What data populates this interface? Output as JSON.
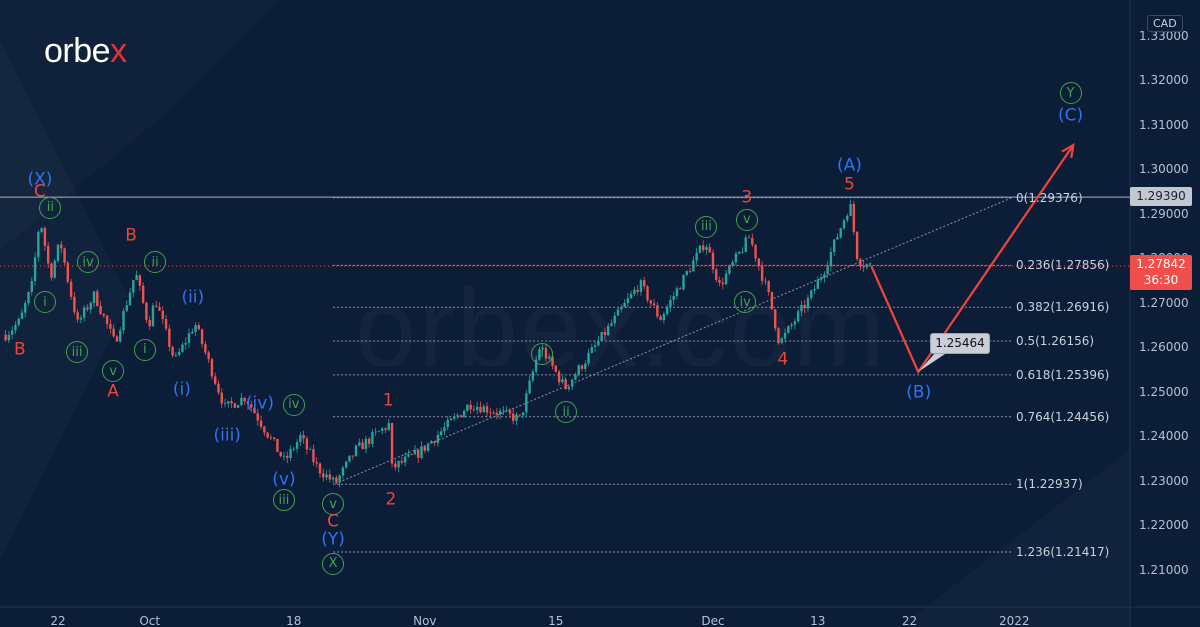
{
  "logo": {
    "text_main": "orbe",
    "text_accent": "x"
  },
  "watermark": "orbex.com",
  "currency": "CAD",
  "colors": {
    "background": "#0c1d38",
    "up": "#26a69a",
    "down": "#ef5350",
    "wave_red": "#f0443a",
    "wave_blue": "#2f73f0",
    "wave_green": "#3fa34d",
    "projection": "#f0443a"
  },
  "chart_data": {
    "type": "candlestick",
    "symbol_quote": "CAD",
    "ylim": [
      1.205,
      1.335
    ],
    "y_ticks": [
      "1.21000",
      "1.22000",
      "1.23000",
      "1.24000",
      "1.25000",
      "1.26000",
      "1.27000",
      "1.28000",
      "1.29000",
      "1.30000",
      "1.31000",
      "1.32000",
      "1.33000"
    ],
    "x_ticks": [
      {
        "date": "2021-09-22T00:00",
        "label": "22"
      },
      {
        "date": "2021-10-01T00:00",
        "label": "Oct"
      },
      {
        "date": "2021-10-18T00:00",
        "label": "18"
      },
      {
        "date": "2021-11-01T00:00",
        "label": "Nov"
      },
      {
        "date": "2021-11-15T00:00",
        "label": "15"
      },
      {
        "date": "2021-12-01T00:00",
        "label": "Dec"
      },
      {
        "date": "2021-12-13T00:00",
        "label": "13"
      },
      {
        "date": "2021-12-22T00:00",
        "label": "22"
      },
      {
        "date": "2022-01-03T00:00",
        "label": "2022"
      }
    ],
    "price_path": [
      [
        "2021-09-16T00:00",
        1.263
      ],
      [
        "2021-09-17T02:00",
        1.266
      ],
      [
        "2021-09-20T00:00",
        1.274
      ],
      [
        "2021-09-20T15:00",
        1.2895
      ],
      [
        "2021-09-21T10:00",
        1.276
      ],
      [
        "2021-09-22T04:00",
        1.284
      ],
      [
        "2021-09-22T22:00",
        1.273
      ],
      [
        "2021-09-23T12:00",
        1.2655
      ],
      [
        "2021-09-24T19:00",
        1.272
      ],
      [
        "2021-09-28T08:00",
        1.261
      ],
      [
        "2021-09-29T22:00",
        1.277
      ],
      [
        "2021-09-30T22:00",
        1.265
      ],
      [
        "2021-10-01T10:00",
        1.271
      ],
      [
        "2021-10-04T22:00",
        1.257
      ],
      [
        "2021-10-06T11:00",
        1.2655
      ],
      [
        "2021-10-08T18:00",
        1.2465
      ],
      [
        "2021-10-12T07:00",
        1.249
      ],
      [
        "2021-10-15T07:00",
        1.2345
      ],
      [
        "2021-10-18T12:00",
        1.24
      ],
      [
        "2021-10-19T20:00",
        1.233
      ],
      [
        "2021-10-21T04:00",
        1.2295
      ],
      [
        "2021-10-22T17:00",
        1.237
      ],
      [
        "2021-10-27T08:00",
        1.243
      ],
      [
        "2021-10-27T12:00",
        1.233
      ],
      [
        "2021-10-29T14:00",
        1.2365
      ],
      [
        "2021-11-04T11:00",
        1.2475
      ],
      [
        "2021-11-10T07:00",
        1.244
      ],
      [
        "2021-11-11T19:00",
        1.2605
      ],
      [
        "2021-11-15T17:00",
        1.251
      ],
      [
        "2021-11-18T10:00",
        1.262
      ],
      [
        "2021-11-23T10:00",
        1.2745
      ],
      [
        "2021-11-24T23:00",
        1.2665
      ],
      [
        "2021-11-30T10:00",
        1.284
      ],
      [
        "2021-12-01T12:00",
        1.274
      ],
      [
        "2021-12-03T19:00",
        1.285
      ],
      [
        "2021-12-07T08:00",
        1.271
      ],
      [
        "2021-12-08T02:00",
        1.261
      ],
      [
        "2021-12-10T10:00",
        1.2715
      ],
      [
        "2021-12-13T13:00",
        1.278
      ],
      [
        "2021-12-15T11:00",
        1.2925
      ],
      [
        "2021-12-16T01:00",
        1.28
      ],
      [
        "2021-12-16T10:00",
        1.279
      ],
      [
        "2021-12-17T02:00",
        1.2784
      ]
    ],
    "horizontal_line": {
      "price": 1.2939,
      "label": "1.29390"
    },
    "last_price": {
      "value": "1.27842",
      "countdown": "36:30"
    },
    "fib_levels": [
      {
        "price": 1.29376,
        "label": "0(1.29376)"
      },
      {
        "price": 1.27856,
        "label": "0.236(1.27856)"
      },
      {
        "price": 1.26916,
        "label": "0.382(1.26916)"
      },
      {
        "price": 1.26156,
        "label": "0.5(1.26156)"
      },
      {
        "price": 1.25396,
        "label": "0.618(1.25396)"
      },
      {
        "price": 1.24456,
        "label": "0.764(1.24456)"
      },
      {
        "price": 1.22937,
        "label": "1(1.22937)"
      },
      {
        "price": 1.21417,
        "label": "1.236(1.21417)"
      }
    ],
    "fib_start": "2021-10-21T00:00",
    "trendline": [
      [
        "2021-10-21T04:00",
        1.2295
      ],
      [
        "2022-01-03T00:00",
        1.294
      ]
    ],
    "projection": [
      [
        "2021-12-17T02:00",
        1.2784
      ],
      [
        "2021-12-22T16:00",
        1.25464
      ],
      [
        "2022-01-07T12:00",
        1.3056
      ]
    ],
    "projection_label": "1.25464",
    "wave_labels": [
      {
        "date": "2021-09-20T15:00",
        "price": 1.2978,
        "text": "(X)",
        "color": "blue"
      },
      {
        "date": "2021-09-20T15:00",
        "price": 1.2951,
        "text": "C",
        "color": "red"
      },
      {
        "date": "2021-09-21T10:00",
        "price": 1.2915,
        "text": "ii",
        "color": "green"
      },
      {
        "date": "2021-09-21T00:00",
        "price": 1.2703,
        "text": "i",
        "color": "green"
      },
      {
        "date": "2021-09-24T07:00",
        "price": 1.2793,
        "text": "iv",
        "color": "green"
      },
      {
        "date": "2021-09-23T11:00",
        "price": 1.2591,
        "text": "iii",
        "color": "green"
      },
      {
        "date": "2021-09-17T02:00",
        "price": 1.2596,
        "text": "B",
        "color": "red"
      },
      {
        "date": "2021-09-28T05:00",
        "price": 1.2548,
        "text": "v",
        "color": "green"
      },
      {
        "date": "2021-09-28T05:00",
        "price": 1.2501,
        "text": "A",
        "color": "red"
      },
      {
        "date": "2021-09-29T14:00",
        "price": 1.2852,
        "text": "B",
        "color": "red"
      },
      {
        "date": "2021-10-01T10:00",
        "price": 1.2793,
        "text": "ii",
        "color": "green"
      },
      {
        "date": "2021-09-30T15:00",
        "price": 1.2596,
        "text": "i",
        "color": "green"
      },
      {
        "date": "2021-10-06T07:00",
        "price": 1.2712,
        "text": "(ii)",
        "color": "blue"
      },
      {
        "date": "2021-10-05T11:00",
        "price": 1.2506,
        "text": "(i)",
        "color": "blue"
      },
      {
        "date": "2021-10-13T10:00",
        "price": 1.2474,
        "text": "(iv)",
        "color": "blue"
      },
      {
        "date": "2021-10-08T22:00",
        "price": 1.2402,
        "text": "(iii)",
        "color": "blue"
      },
      {
        "date": "2021-10-18T00:00",
        "price": 1.2472,
        "text": "iv",
        "color": "green"
      },
      {
        "date": "2021-10-15T06:00",
        "price": 1.2303,
        "text": "(v)",
        "color": "blue"
      },
      {
        "date": "2021-10-15T06:00",
        "price": 1.2258,
        "text": "iii",
        "color": "green"
      },
      {
        "date": "2021-10-21T00:00",
        "price": 1.2249,
        "text": "v",
        "color": "green"
      },
      {
        "date": "2021-10-21T00:00",
        "price": 1.2209,
        "text": "C",
        "color": "red"
      },
      {
        "date": "2021-10-21T00:00",
        "price": 1.2169,
        "text": "(Y)",
        "color": "blue"
      },
      {
        "date": "2021-10-21T00:00",
        "price": 1.2115,
        "text": "X",
        "color": "green"
      },
      {
        "date": "2021-10-27T05:00",
        "price": 1.2481,
        "text": "1",
        "color": "red"
      },
      {
        "date": "2021-10-27T10:00",
        "price": 1.2258,
        "text": "2",
        "color": "red"
      },
      {
        "date": "2021-11-11T23:00",
        "price": 1.2587,
        "text": "i",
        "color": "green"
      },
      {
        "date": "2021-11-15T19:00",
        "price": 1.2456,
        "text": "ii",
        "color": "green"
      },
      {
        "date": "2021-11-30T12:00",
        "price": 1.2872,
        "text": "iii",
        "color": "green"
      },
      {
        "date": "2021-12-03T14:00",
        "price": 1.2888,
        "text": "v",
        "color": "green"
      },
      {
        "date": "2021-12-03T14:00",
        "price": 1.2937,
        "text": "3",
        "color": "red"
      },
      {
        "date": "2021-12-03T11:00",
        "price": 1.2703,
        "text": "iv",
        "color": "green"
      },
      {
        "date": "2021-12-08T08:00",
        "price": 1.2573,
        "text": "4",
        "color": "red"
      },
      {
        "date": "2021-12-15T10:00",
        "price": 1.3009,
        "text": "(A)",
        "color": "blue"
      },
      {
        "date": "2021-12-15T10:00",
        "price": 1.2966,
        "text": "5",
        "color": "red"
      },
      {
        "date": "2021-12-22T17:00",
        "price": 1.2499,
        "text": "(B)",
        "color": "blue"
      },
      {
        "date": "2022-01-07T07:00",
        "price": 1.3173,
        "text": "Y",
        "color": "green"
      },
      {
        "date": "2022-01-07T07:00",
        "price": 1.3121,
        "text": "(C)",
        "color": "blue"
      }
    ]
  }
}
